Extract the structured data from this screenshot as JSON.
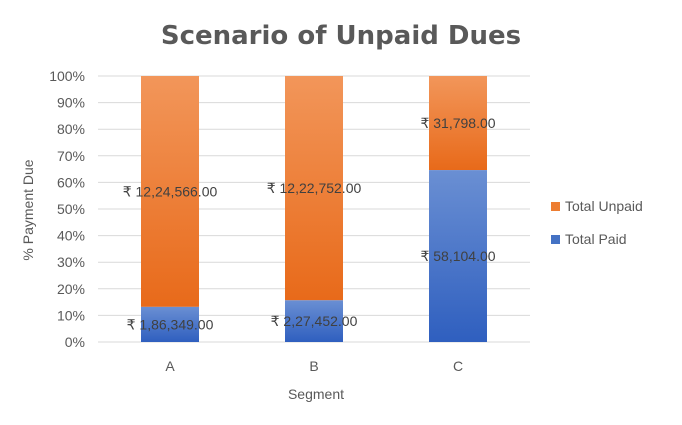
{
  "chart_data": {
    "type": "bar",
    "stacked": "percent",
    "title": "Scenario of Unpaid Dues",
    "xlabel": "Segment",
    "ylabel": "% Payment Due",
    "categories": [
      "A",
      "B",
      "C"
    ],
    "y_ticks": [
      "0%",
      "10%",
      "20%",
      "30%",
      "40%",
      "50%",
      "60%",
      "70%",
      "80%",
      "90%",
      "100%"
    ],
    "ylim": [
      0,
      100
    ],
    "grid": true,
    "legend_position": "right",
    "series": [
      {
        "name": "Total Paid",
        "color": "#4472C4",
        "values": [
          186349,
          227452,
          58104
        ],
        "labels": [
          "₹ 1,86,349.00",
          "₹ 2,27,452.00",
          "₹ 58,104.00"
        ]
      },
      {
        "name": "Total Unpaid",
        "color": "#ED7D31",
        "values": [
          1224566,
          1222752,
          31798
        ],
        "labels": [
          "₹ 12,24,566.00",
          "₹ 12,22,752.00",
          "₹ 31,798.00"
        ]
      }
    ]
  }
}
